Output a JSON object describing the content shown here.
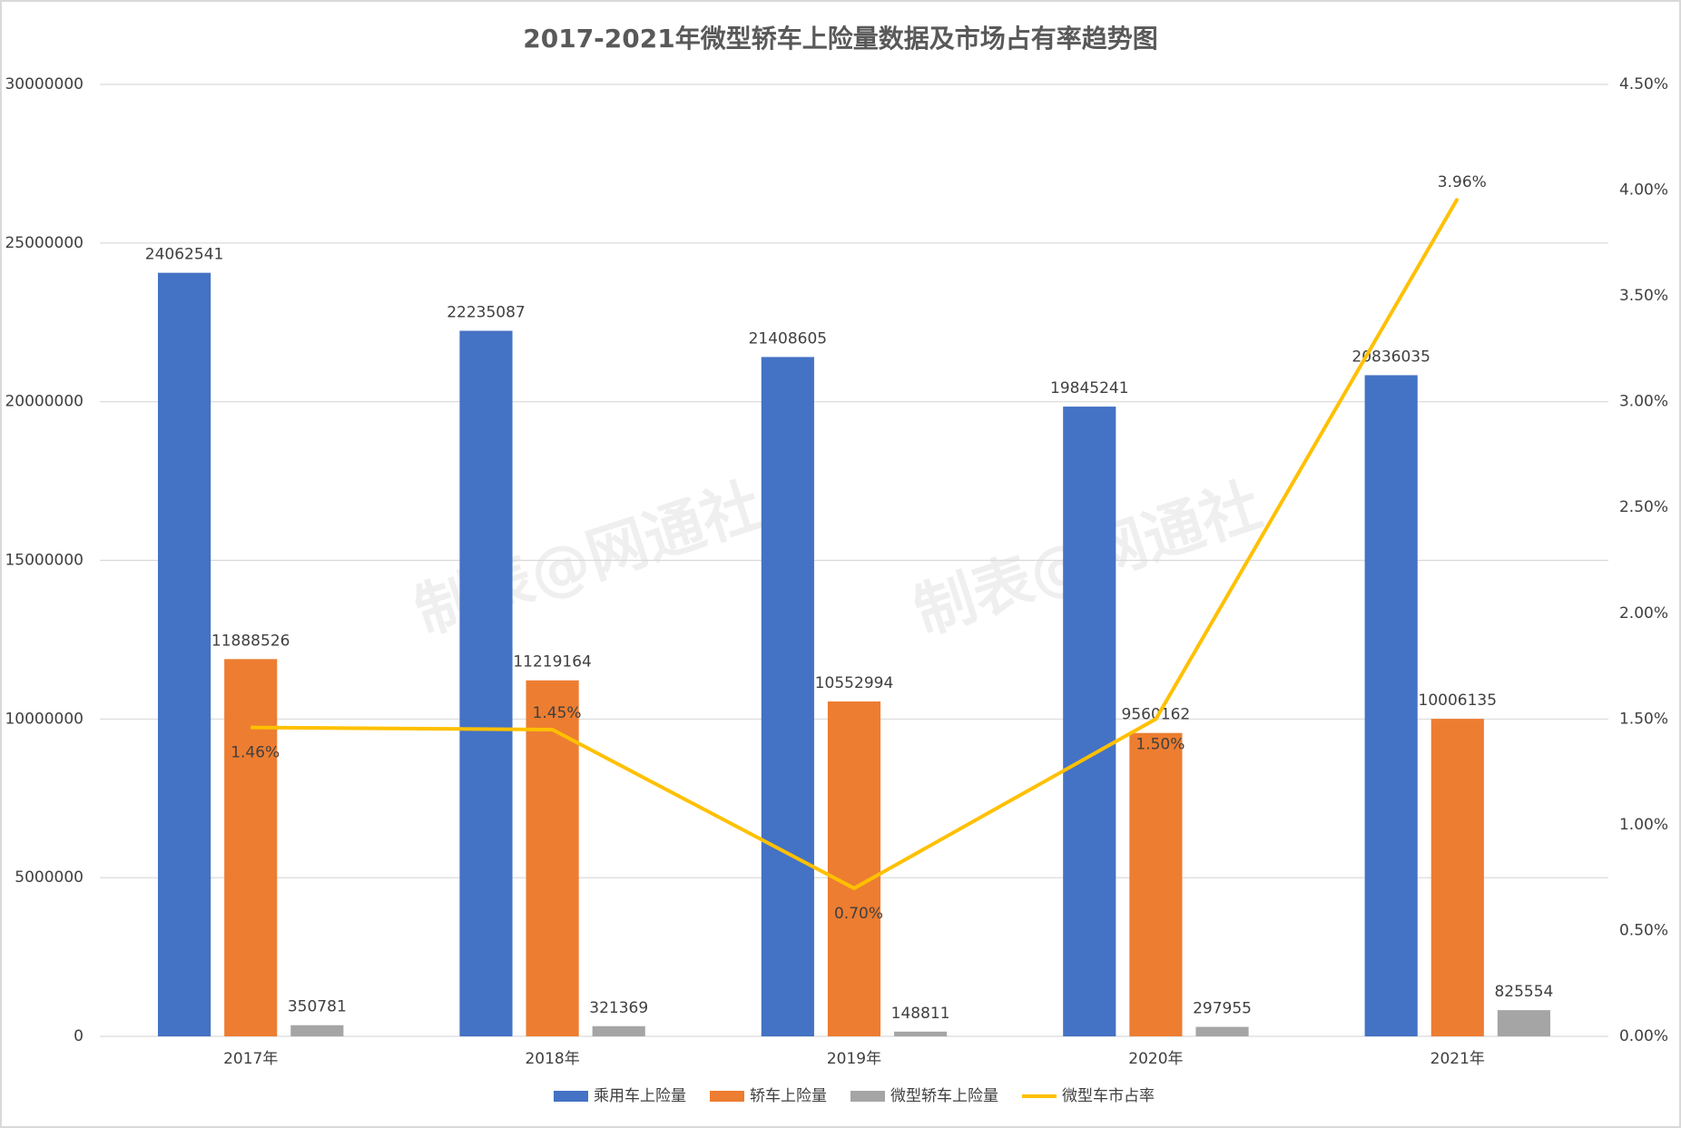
{
  "chart_data": {
    "type": "bar",
    "title": "2017-2021年微型轿车上险量数据及市场占有率趋势图",
    "watermark": "制表@网通社",
    "categories": [
      "2017年",
      "2018年",
      "2019年",
      "2020年",
      "2021年"
    ],
    "series": [
      {
        "name": "乘用车上险量",
        "color": "#4472c4",
        "values": [
          24062541,
          22235087,
          21408605,
          19845241,
          20836035
        ]
      },
      {
        "name": "轿车上险量",
        "color": "#ed7d31",
        "values": [
          11888526,
          11219164,
          10552994,
          9560162,
          10006135
        ]
      },
      {
        "name": "微型轿车上险量",
        "color": "#a5a5a5",
        "values": [
          350781,
          321369,
          148811,
          297955,
          825554
        ]
      },
      {
        "name": "微型车市占率",
        "color": "#ffc000",
        "type": "line",
        "axis": "y2",
        "values": [
          1.46,
          1.45,
          0.7,
          1.5,
          3.96
        ],
        "value_labels": [
          "1.46%",
          "1.45%",
          "0.70%",
          "1.50%",
          "3.96%"
        ]
      }
    ],
    "ylim": [
      0,
      30000000
    ],
    "yticks": [
      0,
      5000000,
      10000000,
      15000000,
      20000000,
      25000000,
      30000000
    ],
    "y2lim": [
      0,
      4.5
    ],
    "y2ticks": [
      {
        "value": 0,
        "label": "0.00%"
      },
      {
        "value": 0.5,
        "label": "0.50%"
      },
      {
        "value": 1,
        "label": "1.00%"
      },
      {
        "value": 1.5,
        "label": "1.50%"
      },
      {
        "value": 2,
        "label": "2.00%"
      },
      {
        "value": 2.5,
        "label": "2.50%"
      },
      {
        "value": 3,
        "label": "3.00%"
      },
      {
        "value": 3.5,
        "label": "3.50%"
      },
      {
        "value": 4,
        "label": "4.00%"
      },
      {
        "value": 4.5,
        "label": "4.50%"
      }
    ],
    "grid": true,
    "legend": "bottom"
  }
}
